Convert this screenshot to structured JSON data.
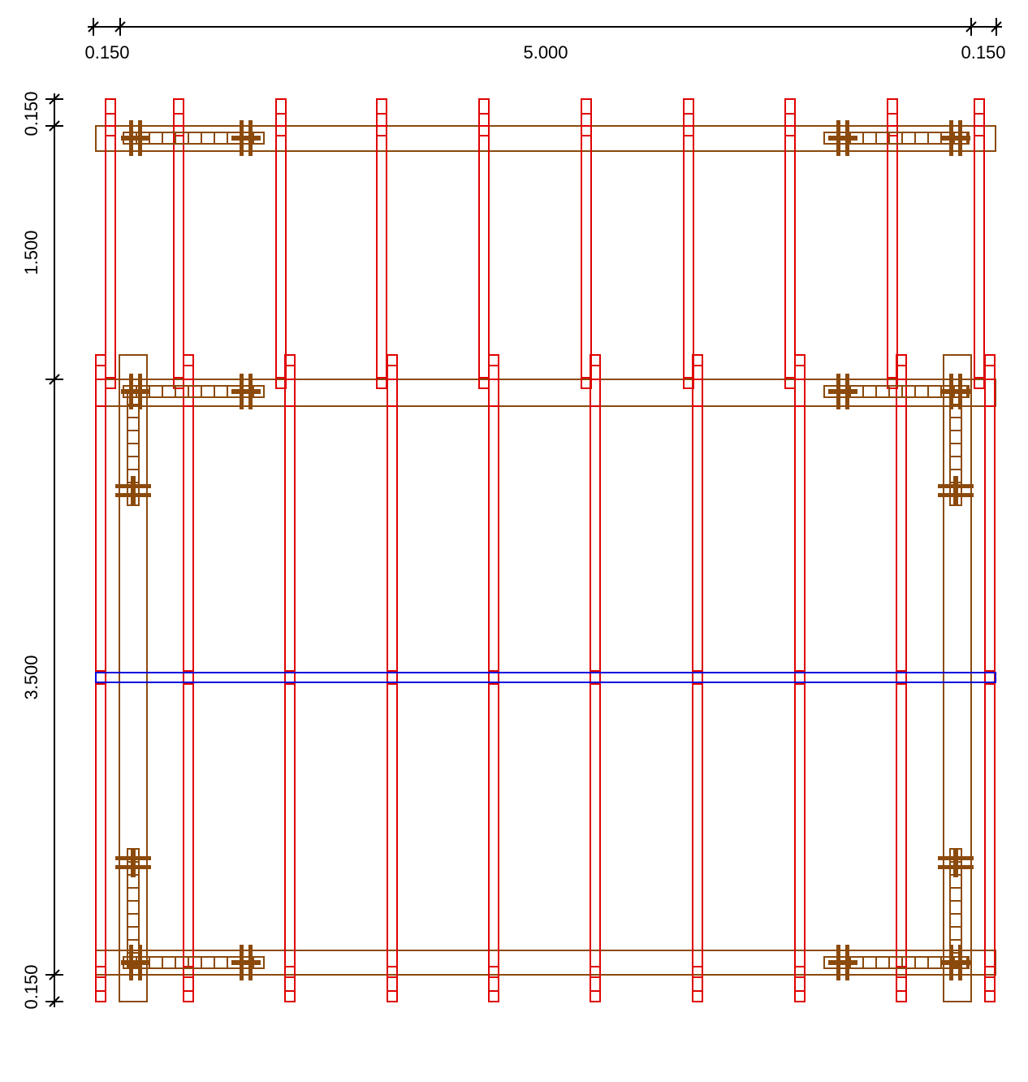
{
  "dimensions": {
    "top": [
      {
        "label": "0.150"
      },
      {
        "label": "5.000"
      },
      {
        "label": "0.150"
      }
    ],
    "left": [
      {
        "label": "0.150"
      },
      {
        "label": "1.500"
      },
      {
        "label": "3.500"
      },
      {
        "label": "0.150"
      }
    ]
  }
}
